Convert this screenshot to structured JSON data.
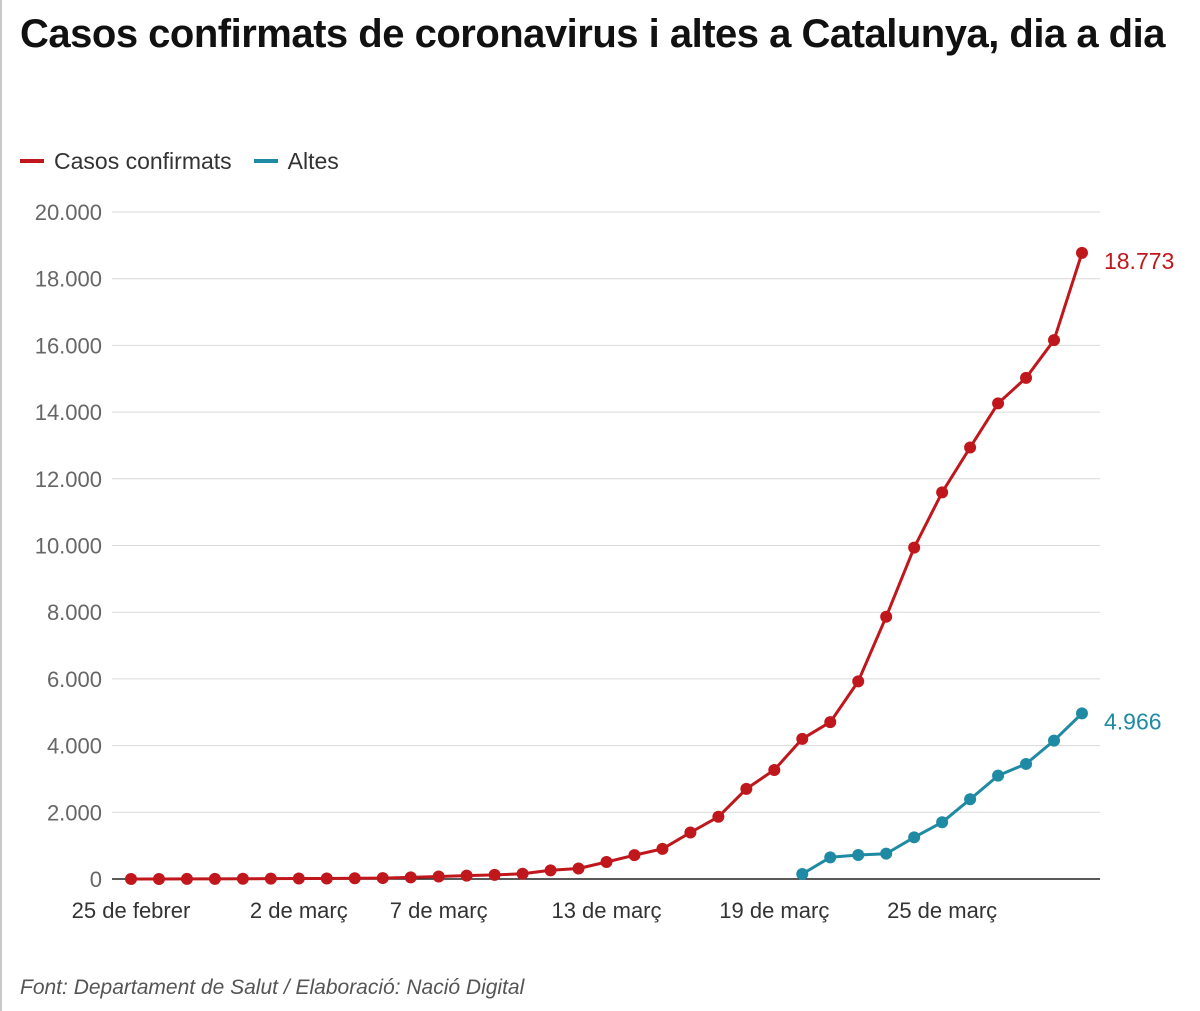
{
  "chart_data": {
    "type": "line",
    "title": "Casos confirmats de coronavirus i altes a Catalunya, dia a dia",
    "source": "Font: Departament de Salut / Elaboració: Nació Digital",
    "legend_position": "top-left",
    "grid": true,
    "ylim": [
      0,
      20000
    ],
    "y_ticks": [
      "0",
      "2.000",
      "4.000",
      "6.000",
      "8.000",
      "10.000",
      "12.000",
      "14.000",
      "16.000",
      "18.000",
      "20.000"
    ],
    "y_tick_values": [
      0,
      2000,
      4000,
      6000,
      8000,
      10000,
      12000,
      14000,
      16000,
      18000,
      20000
    ],
    "x_ticks": [
      {
        "label": "25 de febrer",
        "index": 0
      },
      {
        "label": "2 de març",
        "index": 6
      },
      {
        "label": "7 de març",
        "index": 11
      },
      {
        "label": "13 de març",
        "index": 17
      },
      {
        "label": "19 de març",
        "index": 23
      },
      {
        "label": "25 de març",
        "index": 29
      }
    ],
    "x_count": 35,
    "series": [
      {
        "name": "Casos confirmats",
        "color": "#c0171d",
        "start_index": 0,
        "end_label": "18.773",
        "values": [
          1,
          1,
          2,
          3,
          6,
          12,
          15,
          15,
          24,
          28,
          49,
          75,
          101,
          124,
          156,
          260,
          316,
          509,
          715,
          903,
          1394,
          1866,
          2702,
          3270,
          4203,
          4704,
          5925,
          7864,
          9937,
          11592,
          12940,
          14263,
          15026,
          16157,
          18773
        ]
      },
      {
        "name": "Altes",
        "color": "#1f8aa4",
        "start_index": 24,
        "end_label": "4.966",
        "values": [
          150,
          650,
          720,
          760,
          1250,
          1700,
          2390,
          3100,
          3450,
          4150,
          4966
        ]
      }
    ]
  }
}
